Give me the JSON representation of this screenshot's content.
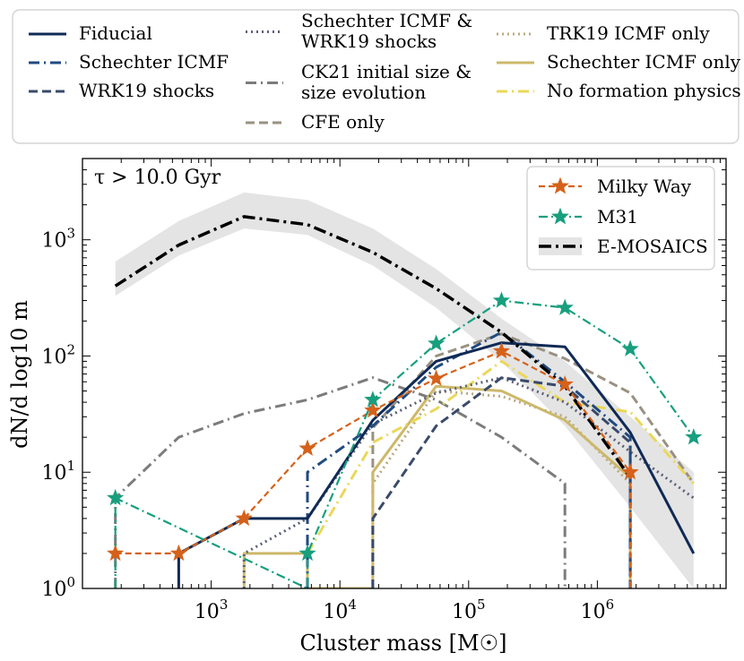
{
  "chart_data": {
    "type": "line",
    "x_scale": "log",
    "y_scale": "log",
    "xlim": [
      100,
      10000000
    ],
    "ylim": [
      1,
      5000
    ],
    "xlabel": "Cluster mass [M☉]",
    "ylabel": "dN/d log10 m",
    "annotation": "τ > 10.0 Gyr",
    "x_ticks": [
      {
        "value": 1000,
        "base": "10",
        "exp": "3"
      },
      {
        "value": 10000,
        "base": "10",
        "exp": "4"
      },
      {
        "value": 100000,
        "base": "10",
        "exp": "5"
      },
      {
        "value": 1000000,
        "base": "10",
        "exp": "6"
      }
    ],
    "y_ticks": [
      {
        "value": 1,
        "base": "10",
        "exp": "0"
      },
      {
        "value": 10,
        "base": "10",
        "exp": "1"
      },
      {
        "value": 100,
        "base": "10",
        "exp": "2"
      },
      {
        "value": 1000,
        "base": "10",
        "exp": "3"
      }
    ],
    "model_legend": [
      {
        "series": "fiducial",
        "label": "Fiducial"
      },
      {
        "series": "schechter_icmf",
        "label": "Schechter ICMF"
      },
      {
        "series": "wrk19_shocks",
        "label": "WRK19 shocks"
      },
      {
        "series": "schechter_wrk19",
        "label": "Schechter ICMF &\nWRK19 shocks"
      },
      {
        "series": "ck21",
        "label": "CK21 initial size &\nsize evolution"
      },
      {
        "series": "cfe_only",
        "label": "CFE only"
      },
      {
        "series": "trk19_only",
        "label": "TRK19 ICMF only"
      },
      {
        "series": "schechter_only",
        "label": "Schechter ICMF only"
      },
      {
        "series": "no_formation",
        "label": "No formation physics"
      }
    ],
    "obs_legend": [
      {
        "series": "milky_way",
        "label": "Milky Way"
      },
      {
        "series": "m31",
        "label": "M31"
      },
      {
        "series": "emosaics",
        "label": "E-MOSAICS"
      }
    ],
    "series": [
      {
        "id": "emosaics_band",
        "name": "E-MOSAICS range",
        "type": "band",
        "x": [
          180,
          560,
          1800,
          5600,
          18000,
          56000,
          180000,
          560000,
          1800000,
          5600000
        ],
        "lower": [
          330,
          730,
          1250,
          1100,
          600,
          260,
          90,
          25,
          5,
          1
        ],
        "upper": [
          650,
          1450,
          2550,
          2200,
          1250,
          560,
          210,
          90,
          30,
          10
        ],
        "color": "#e4e4e4"
      },
      {
        "id": "ck21",
        "name": "CK21 initial size & size evolution",
        "color": "#7c7c7c",
        "dash": "12 5 2 5",
        "width": 3,
        "x": [
          180,
          180,
          560,
          1800,
          5600,
          18000,
          56000,
          180000,
          560000,
          560000
        ],
        "y": [
          1,
          6,
          20,
          32,
          42,
          65,
          42,
          20,
          8,
          1
        ]
      },
      {
        "id": "cfe_only",
        "name": "CFE only",
        "color": "#9a9181",
        "dash": "10 5",
        "width": 3,
        "x": [
          18000,
          18000,
          56000,
          180000,
          560000,
          1800000,
          5600000
        ],
        "y": [
          1,
          24,
          100,
          155,
          95,
          48,
          8
        ]
      },
      {
        "id": "trk19_only",
        "name": "TRK19 ICMF only",
        "color": "#b8aa82",
        "dash": "2 4",
        "width": 3,
        "x": [
          18000,
          18000,
          56000,
          180000,
          560000,
          1800000,
          1800000
        ],
        "y": [
          1,
          8,
          50,
          45,
          30,
          8,
          1
        ]
      },
      {
        "id": "schechter_only",
        "name": "Schechter ICMF only",
        "color": "#cdb86a",
        "dash": "",
        "width": 3,
        "x": [
          1800,
          1800,
          5600,
          5600,
          18000,
          18000,
          56000,
          180000,
          560000,
          1800000,
          1800000
        ],
        "y": [
          1,
          2,
          2,
          1,
          1,
          10,
          55,
          50,
          28,
          9,
          1
        ]
      },
      {
        "id": "no_formation",
        "name": "No formation physics",
        "color": "#ebd75a",
        "dash": "12 5 2 5",
        "width": 3,
        "x": [
          5600,
          18000,
          56000,
          180000,
          560000,
          1800000,
          5600000
        ],
        "y": [
          2,
          18,
          35,
          90,
          40,
          33,
          8
        ]
      },
      {
        "id": "schechter_wrk19",
        "name": "Schechter ICMF & WRK19 shocks",
        "color": "#5c6078",
        "dash": "2 4",
        "width": 3,
        "x": [
          1800,
          1800,
          5600,
          18000,
          56000,
          180000,
          560000,
          1800000,
          5600000
        ],
        "y": [
          1,
          2,
          4,
          26,
          48,
          65,
          40,
          15,
          6
        ]
      },
      {
        "id": "wrk19_shocks",
        "name": "WRK19 shocks",
        "color": "#3a4a6a",
        "dash": "10 5",
        "width": 3,
        "x": [
          18000,
          18000,
          56000,
          180000,
          560000,
          1800000,
          1800000
        ],
        "y": [
          1,
          4,
          25,
          65,
          55,
          18,
          1
        ]
      },
      {
        "id": "schechter_icmf",
        "name": "Schechter ICMF",
        "color": "#204a80",
        "dash": "12 5 2 5",
        "width": 3,
        "x": [
          5600,
          5600,
          18000,
          56000,
          180000,
          560000,
          1800000,
          1800000
        ],
        "y": [
          1,
          10,
          25,
          80,
          160,
          60,
          20,
          1
        ]
      },
      {
        "id": "fiducial",
        "name": "Fiducial",
        "color": "#0f2a55",
        "dash": "",
        "width": 3,
        "x": [
          560,
          560,
          1800,
          5600,
          18000,
          56000,
          180000,
          560000,
          1800000,
          5600000
        ],
        "y": [
          1,
          2,
          4,
          4,
          28,
          90,
          130,
          120,
          22,
          2
        ]
      },
      {
        "id": "emosaics",
        "name": "E-MOSAICS",
        "color": "#000000",
        "dash": "14 5 3 5",
        "width": 3.5,
        "x": [
          180,
          560,
          1800,
          5600,
          18000,
          56000,
          180000,
          560000,
          1800000
        ],
        "y": [
          400,
          900,
          1580,
          1350,
          780,
          380,
          160,
          55,
          9
        ]
      },
      {
        "id": "milky_way",
        "name": "Milky Way",
        "color": "#d5611a",
        "dash": "7 4",
        "width": 2.2,
        "marker": "star",
        "x": [
          180,
          560,
          1800,
          5600,
          18000,
          56000,
          180000,
          560000,
          1800000,
          1800000
        ],
        "y": [
          2,
          2,
          4,
          16,
          34,
          64,
          110,
          57,
          10,
          1
        ]
      },
      {
        "id": "m31",
        "name": "M31",
        "color": "#179f7e",
        "dash": "10 4 2 4",
        "width": 2.2,
        "marker": "star",
        "x": [
          180,
          180,
          5600,
          5600,
          18000,
          56000,
          180000,
          560000,
          1800000,
          5600000
        ],
        "y": [
          1,
          6,
          1,
          2,
          42,
          128,
          300,
          260,
          115,
          20
        ]
      }
    ]
  }
}
